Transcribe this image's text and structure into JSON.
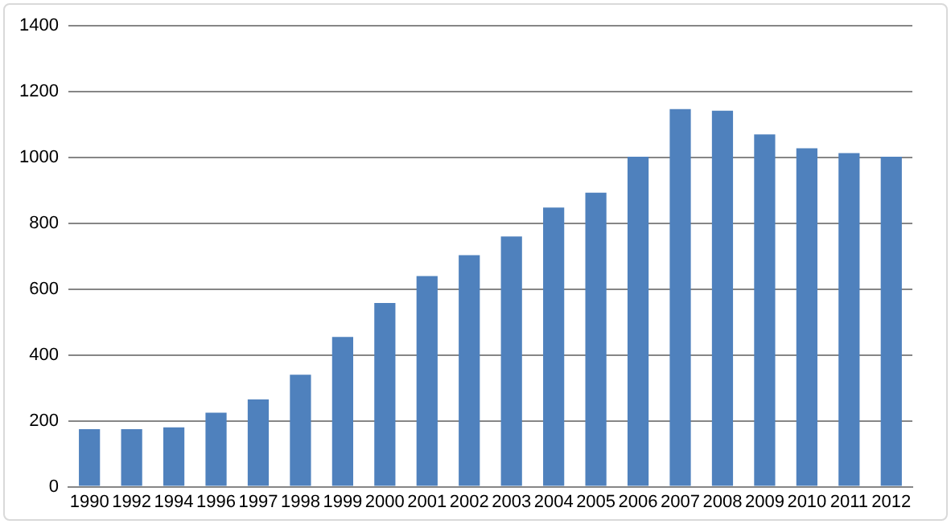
{
  "chart_data": {
    "type": "bar",
    "categories": [
      "1990",
      "1992",
      "1994",
      "1996",
      "1997",
      "1998",
      "1999",
      "2000",
      "2001",
      "2002",
      "2003",
      "2004",
      "2005",
      "2006",
      "2007",
      "2008",
      "2009",
      "2010",
      "2011",
      "2012"
    ],
    "values": [
      175,
      175,
      180,
      225,
      265,
      340,
      455,
      558,
      640,
      703,
      760,
      848,
      893,
      1002,
      1147,
      1142,
      1070,
      1028,
      1013,
      1002
    ],
    "color": "#4f81bd",
    "ylim": [
      0,
      1400
    ],
    "yticks": [
      0,
      200,
      400,
      600,
      800,
      1000,
      1200,
      1400
    ],
    "grid": "y"
  }
}
